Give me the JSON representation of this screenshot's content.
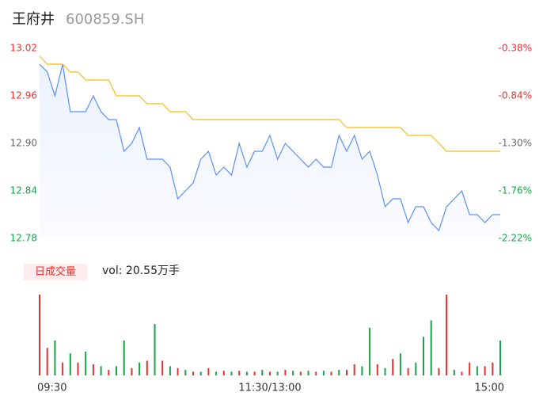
{
  "chart_data": {
    "type": "line",
    "title": "王府井",
    "subtitle": "600859.SH",
    "xlim": [
      0,
      240
    ],
    "xticks": [
      {
        "value": 0,
        "label": "09:30"
      },
      {
        "value": 120,
        "label": "11:30/13:00"
      },
      {
        "value": 240,
        "label": "15:00"
      }
    ],
    "ylim": [
      12.78,
      13.02
    ],
    "yticks": [
      13.02,
      12.96,
      {
        "value": 12.9,
        "label": "12.90"
      },
      12.84,
      12.78
    ],
    "y2lim": [
      -2.22,
      -0.38
    ],
    "y2ticks": [
      {
        "value": -0.38,
        "label": "-0.38%"
      },
      {
        "value": -0.84,
        "label": "-0.84%"
      },
      {
        "value": -1.3,
        "label": "-1.30%"
      },
      {
        "value": -1.76,
        "label": "-1.76%"
      },
      {
        "value": -2.22,
        "label": "-2.22%"
      }
    ],
    "ytick_colors": [
      "#e8312f",
      "#e8312f",
      "#666666",
      "#17a34a",
      "#17a34a"
    ],
    "x": [
      0,
      4,
      8,
      12,
      16,
      20,
      24,
      28,
      32,
      36,
      40,
      44,
      48,
      52,
      56,
      60,
      64,
      68,
      72,
      76,
      80,
      84,
      88,
      92,
      96,
      100,
      104,
      108,
      112,
      116,
      120,
      124,
      128,
      132,
      136,
      140,
      144,
      148,
      152,
      156,
      160,
      164,
      168,
      172,
      176,
      180,
      184,
      188,
      192,
      196,
      200,
      204,
      208,
      212,
      216,
      220,
      224,
      228,
      232,
      236,
      240
    ],
    "series": [
      {
        "color": "#5b8ff9",
        "values": [
          13.0,
          12.99,
          12.96,
          13.0,
          12.94,
          12.94,
          12.94,
          12.96,
          12.94,
          12.93,
          12.93,
          12.89,
          12.9,
          12.92,
          12.88,
          12.88,
          12.88,
          12.87,
          12.83,
          12.84,
          12.85,
          12.88,
          12.89,
          12.86,
          12.87,
          12.86,
          12.9,
          12.87,
          12.89,
          12.89,
          12.91,
          12.88,
          12.9,
          12.89,
          12.88,
          12.87,
          12.88,
          12.87,
          12.87,
          12.91,
          12.89,
          12.91,
          12.88,
          12.89,
          12.86,
          12.82,
          12.83,
          12.83,
          12.8,
          12.82,
          12.82,
          12.8,
          12.79,
          12.82,
          12.83,
          12.84,
          12.81,
          12.81,
          12.8,
          12.81,
          12.81
        ]
      },
      {
        "color": "#f6bd16",
        "values": [
          13.01,
          13.0,
          13.0,
          13.0,
          12.99,
          12.99,
          12.98,
          12.98,
          12.98,
          12.98,
          12.96,
          12.96,
          12.96,
          12.96,
          12.95,
          12.95,
          12.95,
          12.94,
          12.94,
          12.94,
          12.93,
          12.93,
          12.93,
          12.93,
          12.93,
          12.93,
          12.93,
          12.93,
          12.93,
          12.93,
          12.93,
          12.93,
          12.93,
          12.93,
          12.93,
          12.93,
          12.93,
          12.93,
          12.93,
          12.93,
          12.92,
          12.92,
          12.92,
          12.92,
          12.92,
          12.92,
          12.92,
          12.92,
          12.91,
          12.91,
          12.91,
          12.91,
          12.9,
          12.89,
          12.89,
          12.89,
          12.89,
          12.89,
          12.89,
          12.89,
          12.89
        ]
      }
    ],
    "volume": {
      "label": "日成交量",
      "text": "vol: 20.55万手",
      "values": [
        88,
        30,
        38,
        14,
        24,
        14,
        26,
        12,
        10,
        6,
        10,
        38,
        8,
        14,
        16,
        56,
        16,
        10,
        8,
        6,
        4,
        4,
        8,
        4,
        5,
        4,
        5,
        4,
        4,
        6,
        4,
        4,
        6,
        5,
        4,
        5,
        4,
        5,
        4,
        6,
        6,
        12,
        10,
        52,
        12,
        8,
        18,
        24,
        8,
        14,
        42,
        60,
        8,
        88,
        6,
        4,
        14,
        10,
        10,
        14,
        38
      ],
      "colors": [
        "#e8312f",
        "#e8312f",
        "#17a34a",
        "#e8312f",
        "#17a34a",
        "#e8312f",
        "#17a34a",
        "#e8312f",
        "#17a34a",
        "#e8312f",
        "#17a34a",
        "#17a34a",
        "#e8312f",
        "#17a34a",
        "#e8312f",
        "#17a34a",
        "#e8312f",
        "#17a34a",
        "#e8312f",
        "#17a34a",
        "#e8312f",
        "#17a34a",
        "#e8312f",
        "#17a34a",
        "#e8312f",
        "#17a34a",
        "#e8312f",
        "#17a34a",
        "#e8312f",
        "#17a34a",
        "#e8312f",
        "#17a34a",
        "#e8312f",
        "#17a34a",
        "#e8312f",
        "#17a34a",
        "#e8312f",
        "#17a34a",
        "#e8312f",
        "#17a34a",
        "#e8312f",
        "#e8312f",
        "#17a34a",
        "#17a34a",
        "#e8312f",
        "#17a34a",
        "#e8312f",
        "#17a34a",
        "#e8312f",
        "#17a34a",
        "#17a34a",
        "#17a34a",
        "#e8312f",
        "#e8312f",
        "#17a34a",
        "#e8312f",
        "#e8312f",
        "#17a34a",
        "#e8312f",
        "#e8312f",
        "#17a34a"
      ]
    }
  }
}
